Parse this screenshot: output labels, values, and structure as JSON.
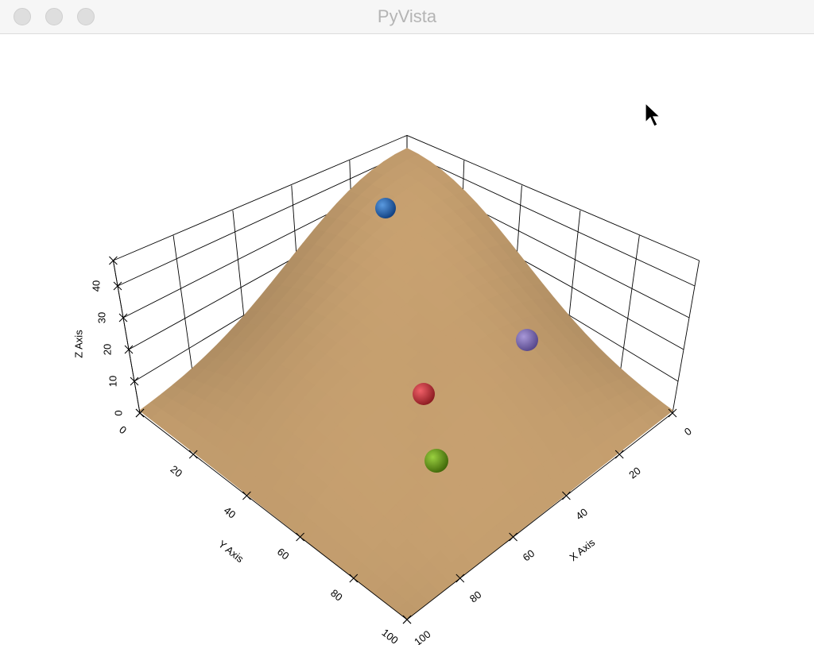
{
  "window": {
    "title": "PyVista"
  },
  "chart_data": {
    "type": "surface",
    "title": "",
    "xlabel": "X Axis",
    "ylabel": "Y Axis",
    "zlabel": "Z Axis",
    "xlim": [
      0,
      100
    ],
    "ylim": [
      0,
      100
    ],
    "zlim": [
      0,
      48
    ],
    "x_ticks": [
      "0",
      "20",
      "40",
      "60",
      "80",
      "100"
    ],
    "y_ticks": [
      "0",
      "20",
      "40",
      "60",
      "80",
      "100"
    ],
    "z_ticks": [
      "0",
      "10",
      "20",
      "30",
      "40"
    ],
    "grid": true,
    "surface_color": "#c9a271",
    "points": [
      {
        "color": "#1f5fa8"
      },
      {
        "color": "#7a68b0"
      },
      {
        "color": "#c8323a"
      },
      {
        "color": "#6a9a18"
      }
    ]
  }
}
